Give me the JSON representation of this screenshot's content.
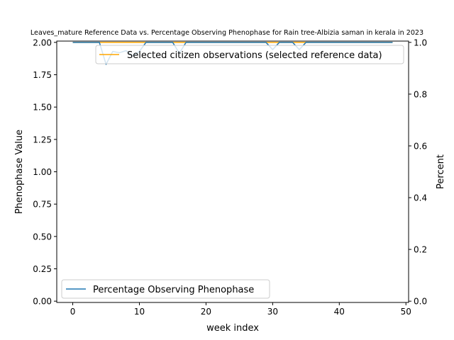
{
  "chart_data": {
    "type": "line",
    "title": "Leaves_mature Reference Data vs. Percentage Observing Phenophase for Rain tree-Albizia saman in kerala in 2023",
    "xlabel": "week index",
    "ylabel_left": "Phenophase Value",
    "ylabel_right": "Percent",
    "xlim": [
      -2.4,
      50.4
    ],
    "ylim_left": [
      -0.01,
      2.01
    ],
    "ylim_right": [
      -0.005,
      1.005
    ],
    "x_ticks": [
      0,
      10,
      20,
      30,
      40,
      50
    ],
    "y_left_ticks": [
      0.0,
      0.25,
      0.5,
      0.75,
      1.0,
      1.25,
      1.5,
      1.75,
      2.0
    ],
    "y_left_tick_labels": [
      "0.00",
      "0.25",
      "0.50",
      "0.75",
      "1.00",
      "1.25",
      "1.50",
      "1.75",
      "2.00"
    ],
    "y_right_ticks": [
      0.0,
      0.2,
      0.4,
      0.6,
      0.8,
      1.0
    ],
    "y_right_tick_labels": [
      "0.0",
      "0.2",
      "0.4",
      "0.6",
      "0.8",
      "1.0"
    ],
    "grid": false,
    "series": [
      {
        "name": "Selected citizen observations (selected reference data)",
        "axis": "left",
        "color": "#ffa500",
        "x": [
          0,
          1,
          2,
          3,
          4,
          5,
          6,
          7,
          8,
          9,
          10,
          11,
          12,
          13,
          14,
          15,
          16,
          17,
          18,
          19,
          20,
          21,
          22,
          23,
          24,
          25,
          26,
          27,
          28,
          29,
          30,
          31,
          32,
          33,
          34,
          35,
          36,
          37,
          38,
          39,
          40,
          41,
          42,
          43,
          44,
          45,
          46,
          47,
          48
        ],
        "values": [
          2,
          2,
          2,
          2,
          2,
          2,
          2,
          2,
          2,
          2,
          2,
          2,
          2,
          2,
          2,
          2,
          2,
          2,
          2,
          2,
          2,
          2,
          2,
          2,
          2,
          2,
          2,
          2,
          2,
          2,
          2,
          2,
          2,
          2,
          2,
          2,
          2,
          2,
          2,
          2,
          2,
          2,
          2,
          2,
          2,
          2,
          2,
          2,
          2
        ]
      },
      {
        "name": "Percentage Observing Phenophase",
        "axis": "right",
        "color": "#1f77b4",
        "x": [
          0,
          1,
          2,
          3,
          4,
          5,
          6,
          7,
          8,
          9,
          10,
          11,
          12,
          13,
          14,
          15,
          16,
          17,
          18,
          19,
          20,
          21,
          22,
          23,
          24,
          25,
          26,
          27,
          28,
          29,
          30,
          31,
          32,
          33,
          34,
          35,
          36,
          37,
          38,
          39,
          40,
          41,
          42,
          43,
          44,
          45,
          46,
          47,
          48
        ],
        "values": [
          1,
          1,
          1,
          1,
          1,
          0.915,
          0.965,
          0.96,
          0.968,
          0.948,
          0.965,
          1,
          1,
          1,
          1,
          1,
          0.958,
          1,
          1,
          1,
          1,
          1,
          1,
          1,
          1,
          1,
          1,
          1,
          1,
          1,
          0.972,
          1,
          1,
          1,
          0.972,
          1,
          1,
          1,
          1,
          1,
          1,
          1,
          1,
          1,
          1,
          1,
          1,
          1,
          1
        ]
      }
    ],
    "legends": [
      {
        "placement": "upper center",
        "entries": [
          "Selected citizen observations (selected reference data)"
        ]
      },
      {
        "placement": "lower left",
        "entries": [
          "Percentage Observing Phenophase"
        ]
      }
    ]
  }
}
